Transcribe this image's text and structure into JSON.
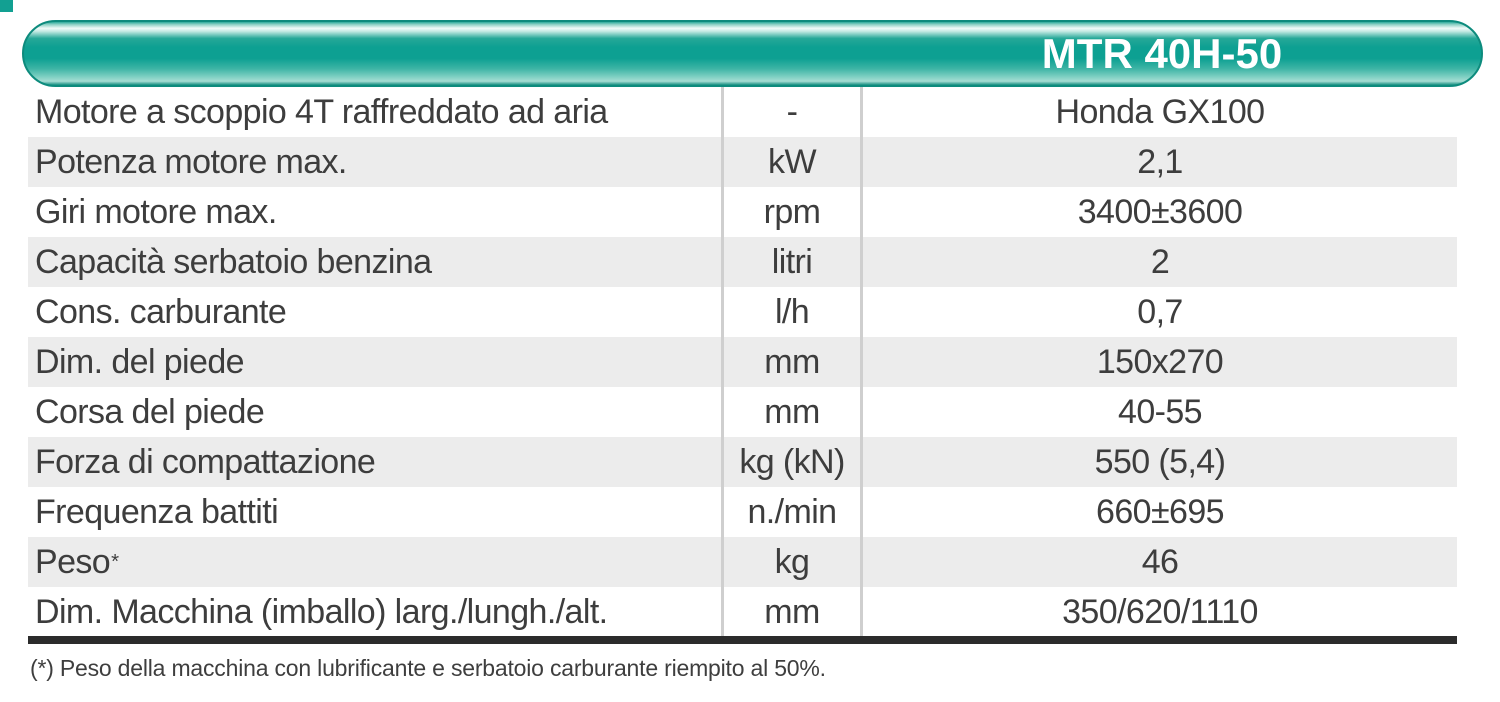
{
  "header": {
    "model": "MTR 40H-50"
  },
  "table": {
    "rows": [
      {
        "label": "Motore a scoppio 4T raffreddato ad aria",
        "unit": "-",
        "value": "Honda GX100"
      },
      {
        "label": "Potenza motore max.",
        "unit": "kW",
        "value": "2,1"
      },
      {
        "label": "Giri motore max.",
        "unit": "rpm",
        "value": "3400±3600"
      },
      {
        "label": "Capacità serbatoio benzina",
        "unit": "litri",
        "value": "2"
      },
      {
        "label": "Cons. carburante",
        "unit": "l/h",
        "value": "0,7"
      },
      {
        "label": "Dim. del piede",
        "unit": "mm",
        "value": "150x270"
      },
      {
        "label": "Corsa del piede",
        "unit": "mm",
        "value": "40-55"
      },
      {
        "label": "Forza di compattazione",
        "unit": "kg (kN)",
        "value": "550 (5,4)"
      },
      {
        "label": "Frequenza battiti",
        "unit": "n./min",
        "value": "660±695"
      },
      {
        "label": "Peso",
        "label_sup": "*",
        "unit": "kg",
        "value": "46"
      },
      {
        "label": "Dim. Macchina (imballo) larg./lungh./alt.",
        "unit": "mm",
        "value": "350/620/1110"
      }
    ]
  },
  "footnote": "(*) Peso della macchina con lubrificante e serbatoio carburante riempito al 50%.",
  "colors": {
    "accent_teal": "#0fa192",
    "header_border": "#0d8b7d",
    "row_alt": "#ececec",
    "divider": "#cfcfcf",
    "bottom_rule": "#2b2b2b",
    "text": "#3d3d3d",
    "header_text": "#ffffff"
  }
}
